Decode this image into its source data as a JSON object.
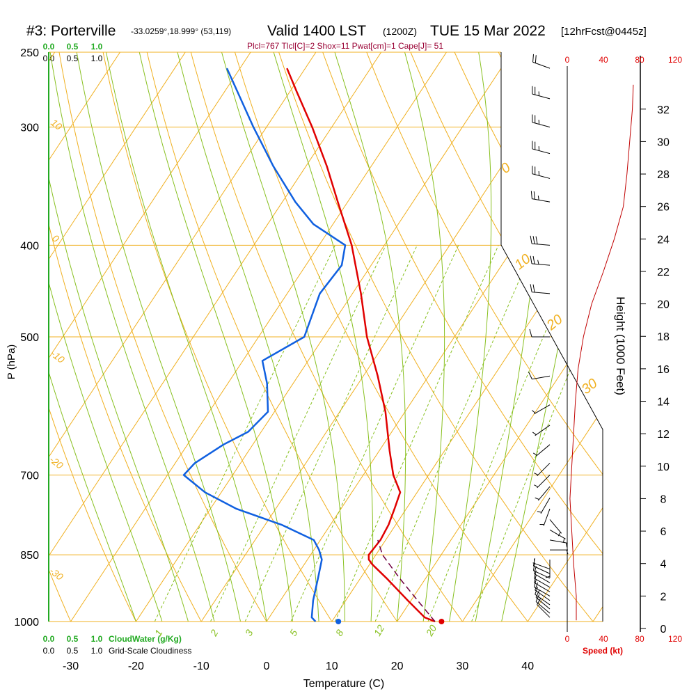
{
  "header": {
    "title_main": "#3: Porterville",
    "coords": "-33.0259°,18.999° (53,119)",
    "valid": "Valid 1400 LST",
    "utc": "(1200Z)",
    "date": "TUE 15 Mar 2022",
    "fcst": "[12hrFcst@0445z]",
    "indices": "Plcl=767 Tlcl[C]=2 Shox=11 Pwat[cm]=1 Cape[J]= 51"
  },
  "labels": {
    "y_left": "P (hPa)",
    "x_bottom": "Temperature (C)",
    "y_right": "Height (1000 Feet)",
    "cloudwater": "CloudWater (g/Kg)",
    "cloudiness": "Grid-Scale Cloudiness",
    "speed": "Speed (kt)"
  },
  "colors": {
    "temperature": "#e00000",
    "dewpoint": "#1060e0",
    "isotherm": "#f0b020",
    "dry_adiabat": "#f0b020",
    "moist_adiabat": "#88c020",
    "mixing_ratio": "#88c020",
    "parcel": "#700040",
    "wind_speed": "#c00000",
    "indices_text": "#990033",
    "cloud_scale": "#22aa22"
  },
  "chart_data": {
    "type": "line",
    "skew_t": true,
    "y_scale": "log-pressure",
    "ylim": [
      1000,
      250
    ],
    "xlim": [
      -34,
      36
    ],
    "pressure_ticks": [
      "250",
      "300",
      "400",
      "500",
      "700",
      "850",
      "1000"
    ],
    "temp_ticks": [
      "-30",
      "-20",
      "-10",
      "0",
      "10",
      "20",
      "30",
      "40"
    ],
    "height_ticks": [
      "0",
      "2",
      "4",
      "6",
      "8",
      "10",
      "12",
      "14",
      "16",
      "18",
      "20",
      "22",
      "24",
      "26",
      "28",
      "30",
      "32"
    ],
    "dry_adiabat_labels": [
      "10",
      "0",
      "-10",
      "-20",
      "-30"
    ],
    "moist_adiabat_labels": [
      "0",
      "10",
      "20",
      "30"
    ],
    "mixing_ratio_labels": [
      "1",
      "2",
      "3",
      "5",
      "8",
      "12",
      "20"
    ],
    "cloud_scale_top": [
      "0.0",
      "0.5",
      "1.0"
    ],
    "cloud_scale_top_black": [
      "0.0",
      "0.5",
      "1.0"
    ],
    "cloud_scale_bottom": [
      "0.0",
      "0.5",
      "1.0"
    ],
    "cloud_scale_bottom_black": [
      "0.0",
      "0.5",
      "1.0"
    ],
    "speed_ticks_top": [
      "0",
      "40",
      "80",
      "120"
    ],
    "speed_ticks_bottom": [
      "0",
      "40",
      "80",
      "120"
    ],
    "series": [
      {
        "name": "temperature",
        "points": [
          [
            1000,
            25.8
          ],
          [
            990,
            23.8
          ],
          [
            950,
            19.5
          ],
          [
            900,
            14.0
          ],
          [
            870,
            10.4
          ],
          [
            860,
            9.4
          ],
          [
            850,
            8.9
          ],
          [
            820,
            9.2
          ],
          [
            790,
            8.9
          ],
          [
            760,
            8.2
          ],
          [
            730,
            7.4
          ],
          [
            700,
            4.6
          ],
          [
            660,
            1.6
          ],
          [
            600,
            -3.0
          ],
          [
            550,
            -7.8
          ],
          [
            500,
            -13.4
          ],
          [
            450,
            -18.7
          ],
          [
            400,
            -25.0
          ],
          [
            360,
            -31.5
          ],
          [
            330,
            -36.8
          ],
          [
            300,
            -43.0
          ],
          [
            275,
            -49.0
          ],
          [
            260,
            -52.8
          ]
        ]
      },
      {
        "name": "dewpoint",
        "points": [
          [
            1000,
            7.5
          ],
          [
            990,
            6.5
          ],
          [
            950,
            5.0
          ],
          [
            900,
            3.5
          ],
          [
            860,
            2.2
          ],
          [
            840,
            0.8
          ],
          [
            820,
            -1.0
          ],
          [
            790,
            -7.5
          ],
          [
            760,
            -16.0
          ],
          [
            730,
            -22.5
          ],
          [
            700,
            -27.5
          ],
          [
            680,
            -27.0
          ],
          [
            650,
            -24.5
          ],
          [
            630,
            -22.0
          ],
          [
            600,
            -21.0
          ],
          [
            560,
            -24.0
          ],
          [
            530,
            -27.0
          ],
          [
            500,
            -23.0
          ],
          [
            450,
            -25.0
          ],
          [
            420,
            -24.5
          ],
          [
            400,
            -26.0
          ],
          [
            380,
            -33.0
          ],
          [
            360,
            -38.0
          ],
          [
            330,
            -45.0
          ],
          [
            300,
            -52.0
          ],
          [
            260,
            -62.0
          ]
        ]
      },
      {
        "name": "parcel",
        "points": [
          [
            1000,
            25.8
          ],
          [
            950,
            21.0
          ],
          [
            900,
            16.0
          ],
          [
            850,
            11.0
          ],
          [
            820,
            8.8
          ]
        ]
      }
    ],
    "surface_markers": [
      {
        "name": "surface temperature",
        "pressure": 1000,
        "temp": 26.8
      },
      {
        "name": "surface dewpoint",
        "pressure": 1000,
        "temp": 11.0
      }
    ],
    "wind_barbs": [
      {
        "pressure": 990,
        "speed_kt": 10,
        "dir_deg": 315
      },
      {
        "pressure": 980,
        "speed_kt": 10,
        "dir_deg": 310
      },
      {
        "pressure": 970,
        "speed_kt": 10,
        "dir_deg": 310
      },
      {
        "pressure": 960,
        "speed_kt": 10,
        "dir_deg": 305
      },
      {
        "pressure": 950,
        "speed_kt": 10,
        "dir_deg": 305
      },
      {
        "pressure": 940,
        "speed_kt": 10,
        "dir_deg": 300
      },
      {
        "pressure": 930,
        "speed_kt": 10,
        "dir_deg": 300
      },
      {
        "pressure": 920,
        "speed_kt": 10,
        "dir_deg": 300
      },
      {
        "pressure": 910,
        "speed_kt": 10,
        "dir_deg": 300
      },
      {
        "pressure": 900,
        "speed_kt": 10,
        "dir_deg": 295
      },
      {
        "pressure": 890,
        "speed_kt": 10,
        "dir_deg": 295
      },
      {
        "pressure": 880,
        "speed_kt": 5,
        "dir_deg": 290
      },
      {
        "pressure": 860,
        "speed_kt": 5,
        "dir_deg": 180
      },
      {
        "pressure": 840,
        "speed_kt": 5,
        "dir_deg": 90
      },
      {
        "pressure": 820,
        "speed_kt": 5,
        "dir_deg": 100
      },
      {
        "pressure": 800,
        "speed_kt": 5,
        "dir_deg": 120
      },
      {
        "pressure": 780,
        "speed_kt": 5,
        "dir_deg": 140
      },
      {
        "pressure": 760,
        "speed_kt": 5,
        "dir_deg": 200
      },
      {
        "pressure": 740,
        "speed_kt": 5,
        "dir_deg": 210
      },
      {
        "pressure": 720,
        "speed_kt": 5,
        "dir_deg": 220
      },
      {
        "pressure": 700,
        "speed_kt": 5,
        "dir_deg": 225
      },
      {
        "pressure": 680,
        "speed_kt": 5,
        "dir_deg": 225
      },
      {
        "pressure": 650,
        "speed_kt": 5,
        "dir_deg": 230
      },
      {
        "pressure": 620,
        "speed_kt": 5,
        "dir_deg": 235
      },
      {
        "pressure": 590,
        "speed_kt": 5,
        "dir_deg": 240
      },
      {
        "pressure": 550,
        "speed_kt": 10,
        "dir_deg": 260
      },
      {
        "pressure": 500,
        "speed_kt": 10,
        "dir_deg": 270
      },
      {
        "pressure": 450,
        "speed_kt": 20,
        "dir_deg": 275
      },
      {
        "pressure": 420,
        "speed_kt": 25,
        "dir_deg": 275
      },
      {
        "pressure": 400,
        "speed_kt": 30,
        "dir_deg": 275
      },
      {
        "pressure": 360,
        "speed_kt": 25,
        "dir_deg": 280
      },
      {
        "pressure": 340,
        "speed_kt": 25,
        "dir_deg": 285
      },
      {
        "pressure": 320,
        "speed_kt": 25,
        "dir_deg": 285
      },
      {
        "pressure": 300,
        "speed_kt": 25,
        "dir_deg": 285
      },
      {
        "pressure": 280,
        "speed_kt": 25,
        "dir_deg": 285
      },
      {
        "pressure": 260,
        "speed_kt": 20,
        "dir_deg": 290
      }
    ],
    "wind_speed_profile": [
      {
        "height_kft": 0.5,
        "speed_kt": 10
      },
      {
        "height_kft": 2,
        "speed_kt": 10
      },
      {
        "height_kft": 4,
        "speed_kt": 7
      },
      {
        "height_kft": 6,
        "speed_kt": 5
      },
      {
        "height_kft": 8,
        "speed_kt": 3
      },
      {
        "height_kft": 10,
        "speed_kt": 5
      },
      {
        "height_kft": 12,
        "speed_kt": 7
      },
      {
        "height_kft": 14,
        "speed_kt": 9
      },
      {
        "height_kft": 16,
        "speed_kt": 12
      },
      {
        "height_kft": 18,
        "speed_kt": 18
      },
      {
        "height_kft": 20,
        "speed_kt": 27
      },
      {
        "height_kft": 22,
        "speed_kt": 40
      },
      {
        "height_kft": 24,
        "speed_kt": 52
      },
      {
        "height_kft": 26,
        "speed_kt": 62
      },
      {
        "height_kft": 28,
        "speed_kt": 66
      },
      {
        "height_kft": 30,
        "speed_kt": 69
      },
      {
        "height_kft": 32,
        "speed_kt": 72
      },
      {
        "height_kft": 33.5,
        "speed_kt": 73
      }
    ]
  }
}
